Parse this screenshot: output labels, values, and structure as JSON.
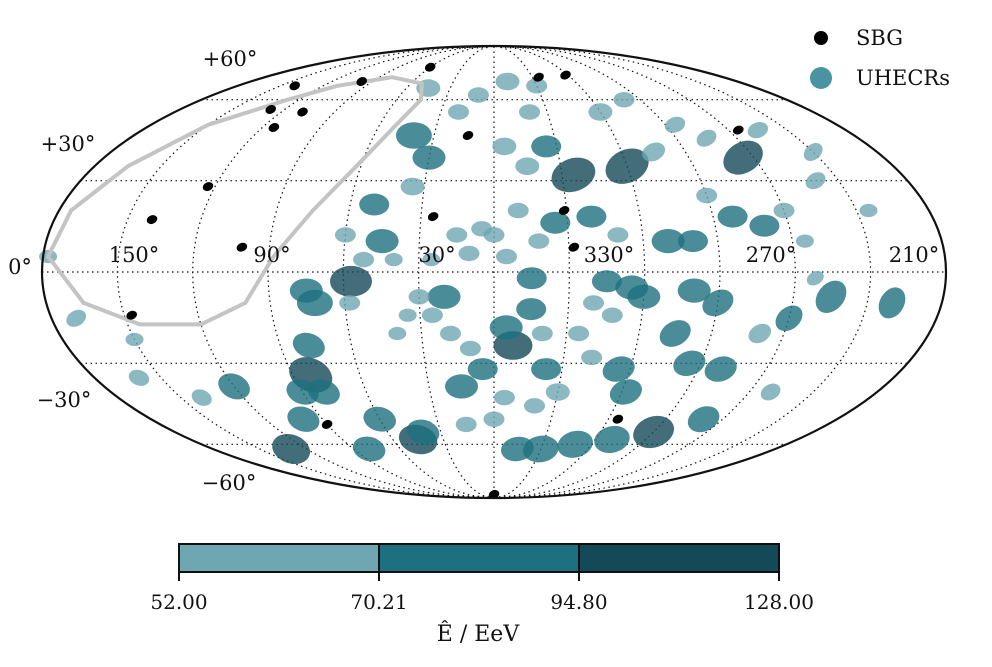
{
  "chart_data": {
    "type": "scatter",
    "projection": "mollweide",
    "coordinate_system": "galactic",
    "grid": true,
    "lon_tick_labels": [
      "150°",
      "90°",
      "30°",
      "330°",
      "270°",
      "210°"
    ],
    "lat_tick_labels": [
      "+60°",
      "+30°",
      "0°",
      "−30°",
      "−60°"
    ],
    "legend_placement": "top-right",
    "legend": [
      {
        "label": "SBG",
        "color": "#000000"
      },
      {
        "label": "UHECRs",
        "color": "#4a93a0"
      }
    ],
    "colorbar": {
      "label": "Ê / EeV",
      "boundaries": [
        52.0,
        70.21,
        94.8,
        128.0
      ],
      "tick_labels": [
        "52.00",
        "70.21",
        "94.80",
        "128.00"
      ],
      "colors": [
        "#6ea6b1",
        "#1d7080",
        "#144a58"
      ]
    },
    "sbg_sources": [
      {
        "lon": 114,
        "lat": 49
      },
      {
        "lon": 108,
        "lat": 55
      },
      {
        "lon": 128,
        "lat": 56
      },
      {
        "lon": 140,
        "lat": 66
      },
      {
        "lon": 98,
        "lat": 68
      },
      {
        "lon": 60,
        "lat": 75
      },
      {
        "lon": 123,
        "lat": 28
      },
      {
        "lon": 140,
        "lat": 17
      },
      {
        "lon": 101,
        "lat": 8
      },
      {
        "lon": 147,
        "lat": -14
      },
      {
        "lon": 13,
        "lat": 46
      },
      {
        "lon": 25,
        "lat": 18
      },
      {
        "lon": 331,
        "lat": 20
      },
      {
        "lon": 328,
        "lat": 8
      },
      {
        "lon": 302,
        "lat": 71
      },
      {
        "lon": 235,
        "lat": 48
      },
      {
        "lon": 325,
        "lat": 70
      },
      {
        "lon": 90,
        "lat": -52
      },
      {
        "lon": 295,
        "lat": -50
      },
      {
        "lon": 0,
        "lat": -86
      }
    ],
    "exposure_contour": [
      {
        "lon": 127,
        "lat": 60
      },
      {
        "lon": 150,
        "lat": 50
      },
      {
        "lon": 165,
        "lat": 35
      },
      {
        "lon": 175,
        "lat": 20
      },
      {
        "lon": 178,
        "lat": 5
      },
      {
        "lon": 165,
        "lat": -10
      },
      {
        "lon": 145,
        "lat": -17
      },
      {
        "lon": 120,
        "lat": -17
      },
      {
        "lon": 100,
        "lat": -10
      },
      {
        "lon": 88,
        "lat": 5
      },
      {
        "lon": 75,
        "lat": 20
      },
      {
        "lon": 62,
        "lat": 35
      },
      {
        "lon": 50,
        "lat": 52
      },
      {
        "lon": 45,
        "lat": 60
      },
      {
        "lon": 52,
        "lat": 67
      },
      {
        "lon": 80,
        "lat": 70
      },
      {
        "lon": 110,
        "lat": 66
      },
      {
        "lon": 127,
        "lat": 60
      }
    ],
    "uhecr_events": [
      {
        "lon": 40,
        "lat": 46,
        "energy": 78,
        "size": 1.2,
        "angle": 0
      },
      {
        "lon": 30,
        "lat": 38,
        "energy": 80,
        "size": 1.1,
        "angle": 0
      },
      {
        "lon": 35,
        "lat": 28,
        "energy": 60,
        "size": 0.8,
        "angle": 0
      },
      {
        "lon": 50,
        "lat": 22,
        "energy": 80,
        "size": 1.0,
        "angle": 0
      },
      {
        "lon": 45,
        "lat": 10,
        "energy": 85,
        "size": 1.1,
        "angle": 0
      },
      {
        "lon": 60,
        "lat": 12,
        "energy": 58,
        "size": 0.7,
        "angle": 0
      },
      {
        "lon": 52,
        "lat": 4,
        "energy": 58,
        "size": 0.7,
        "angle": 0
      },
      {
        "lon": 57,
        "lat": -3,
        "energy": 110,
        "size": 1.4,
        "angle": 0
      },
      {
        "lon": 75,
        "lat": -6,
        "energy": 85,
        "size": 1.1,
        "angle": 0
      },
      {
        "lon": 72,
        "lat": -10,
        "energy": 82,
        "size": 1.2,
        "angle": 0
      },
      {
        "lon": 78,
        "lat": -24,
        "energy": 78,
        "size": 1.1,
        "angle": 20
      },
      {
        "lon": 82,
        "lat": -34,
        "energy": 100,
        "size": 1.5,
        "angle": 25
      },
      {
        "lon": 80,
        "lat": -40,
        "energy": 78,
        "size": 1.1,
        "angle": 20
      },
      {
        "lon": 58,
        "lat": -10,
        "energy": 58,
        "size": 0.7,
        "angle": 0
      },
      {
        "lon": 40,
        "lat": 4,
        "energy": 58,
        "size": 0.6,
        "angle": 0
      },
      {
        "lon": 25,
        "lat": 4,
        "energy": 58,
        "size": 0.6,
        "angle": 0
      },
      {
        "lon": 15,
        "lat": 12,
        "energy": 58,
        "size": 0.7,
        "angle": 0
      },
      {
        "lon": 10,
        "lat": 6,
        "energy": 58,
        "size": 0.7,
        "angle": 0
      },
      {
        "lon": 5,
        "lat": 14,
        "energy": 58,
        "size": 0.7,
        "angle": 0
      },
      {
        "lon": 355,
        "lat": 5,
        "energy": 58,
        "size": 0.7,
        "angle": 0
      },
      {
        "lon": 345,
        "lat": -2,
        "energy": 80,
        "size": 1.0,
        "angle": 0
      },
      {
        "lon": 20,
        "lat": -8,
        "energy": 85,
        "size": 1.1,
        "angle": 0
      },
      {
        "lon": 30,
        "lat": -8,
        "energy": 58,
        "size": 0.7,
        "angle": 0
      },
      {
        "lon": 25,
        "lat": -14,
        "energy": 58,
        "size": 0.7,
        "angle": 0
      },
      {
        "lon": 35,
        "lat": -14,
        "energy": 58,
        "size": 0.6,
        "angle": 0
      },
      {
        "lon": 18,
        "lat": -20,
        "energy": 58,
        "size": 0.7,
        "angle": 0
      },
      {
        "lon": 40,
        "lat": -20,
        "energy": 58,
        "size": 0.6,
        "angle": 0
      },
      {
        "lon": 10,
        "lat": -25,
        "energy": 58,
        "size": 0.7,
        "angle": 0
      },
      {
        "lon": 5,
        "lat": -32,
        "energy": 80,
        "size": 1.0,
        "angle": 0
      },
      {
        "lon": 15,
        "lat": -38,
        "energy": 85,
        "size": 1.1,
        "angle": 0
      },
      {
        "lon": 352,
        "lat": -24,
        "energy": 100,
        "size": 1.3,
        "angle": 0
      },
      {
        "lon": 355,
        "lat": -18,
        "energy": 80,
        "size": 1.1,
        "angle": 0
      },
      {
        "lon": 345,
        "lat": -12,
        "energy": 80,
        "size": 1.0,
        "angle": 0
      },
      {
        "lon": 340,
        "lat": -20,
        "energy": 58,
        "size": 0.7,
        "angle": 0
      },
      {
        "lon": 337,
        "lat": -32,
        "energy": 80,
        "size": 1.0,
        "angle": 0
      },
      {
        "lon": 330,
        "lat": -40,
        "energy": 58,
        "size": 0.8,
        "angle": 0
      },
      {
        "lon": 340,
        "lat": -45,
        "energy": 58,
        "size": 0.7,
        "angle": 0
      },
      {
        "lon": 325,
        "lat": -20,
        "energy": 58,
        "size": 0.7,
        "angle": 0
      },
      {
        "lon": 320,
        "lat": -10,
        "energy": 58,
        "size": 0.7,
        "angle": 0
      },
      {
        "lon": 315,
        "lat": -3,
        "energy": 80,
        "size": 1.0,
        "angle": 0
      },
      {
        "lon": 305,
        "lat": -5,
        "energy": 80,
        "size": 1.1,
        "angle": 0
      },
      {
        "lon": 300,
        "lat": -8,
        "energy": 80,
        "size": 1.1,
        "angle": 0
      },
      {
        "lon": 312,
        "lat": -14,
        "energy": 58,
        "size": 0.7,
        "angle": 0
      },
      {
        "lon": 318,
        "lat": -28,
        "energy": 58,
        "size": 0.7,
        "angle": 0
      },
      {
        "lon": 305,
        "lat": -32,
        "energy": 80,
        "size": 1.1,
        "angle": -20
      },
      {
        "lon": 298,
        "lat": -40,
        "energy": 80,
        "size": 1.1,
        "angle": -20
      },
      {
        "lon": 285,
        "lat": -20,
        "energy": 80,
        "size": 1.1,
        "angle": -30
      },
      {
        "lon": 275,
        "lat": -30,
        "energy": 80,
        "size": 1.1,
        "angle": -20
      },
      {
        "lon": 260,
        "lat": -32,
        "energy": 80,
        "size": 1.1,
        "angle": -20
      },
      {
        "lon": 250,
        "lat": -20,
        "energy": 58,
        "size": 0.8,
        "angle": -30
      },
      {
        "lon": 240,
        "lat": -15,
        "energy": 80,
        "size": 1.0,
        "angle": -40
      },
      {
        "lon": 225,
        "lat": -8,
        "energy": 80,
        "size": 1.2,
        "angle": -50
      },
      {
        "lon": 232,
        "lat": -2,
        "energy": 58,
        "size": 0.6,
        "angle": -30
      },
      {
        "lon": 270,
        "lat": -10,
        "energy": 80,
        "size": 1.1,
        "angle": -30
      },
      {
        "lon": 280,
        "lat": -6,
        "energy": 80,
        "size": 1.1,
        "angle": 0
      },
      {
        "lon": 290,
        "lat": 10,
        "energy": 80,
        "size": 1.1,
        "angle": 0
      },
      {
        "lon": 280,
        "lat": 10,
        "energy": 80,
        "size": 1.0,
        "angle": 0
      },
      {
        "lon": 310,
        "lat": 12,
        "energy": 58,
        "size": 0.7,
        "angle": 0
      },
      {
        "lon": 320,
        "lat": 18,
        "energy": 80,
        "size": 1.0,
        "angle": 0
      },
      {
        "lon": 335,
        "lat": 16,
        "energy": 80,
        "size": 1.0,
        "angle": 0
      },
      {
        "lon": 342,
        "lat": 10,
        "energy": 58,
        "size": 0.7,
        "angle": 0
      },
      {
        "lon": 350,
        "lat": 20,
        "energy": 58,
        "size": 0.7,
        "angle": 0
      },
      {
        "lon": 0,
        "lat": 12,
        "energy": 58,
        "size": 0.7,
        "angle": 0
      },
      {
        "lon": 325,
        "lat": 32,
        "energy": 110,
        "size": 1.5,
        "angle": -20
      },
      {
        "lon": 335,
        "lat": 42,
        "energy": 80,
        "size": 1.0,
        "angle": 0
      },
      {
        "lon": 345,
        "lat": 35,
        "energy": 58,
        "size": 0.8,
        "angle": 0
      },
      {
        "lon": 355,
        "lat": 42,
        "energy": 58,
        "size": 0.8,
        "angle": 0
      },
      {
        "lon": 300,
        "lat": 35,
        "energy": 110,
        "size": 1.5,
        "angle": -25
      },
      {
        "lon": 285,
        "lat": 40,
        "energy": 58,
        "size": 0.8,
        "angle": -25
      },
      {
        "lon": 270,
        "lat": 25,
        "energy": 58,
        "size": 0.7,
        "angle": 0
      },
      {
        "lon": 262,
        "lat": 18,
        "energy": 80,
        "size": 1.0,
        "angle": 0
      },
      {
        "lon": 250,
        "lat": 15,
        "energy": 80,
        "size": 1.0,
        "angle": 0
      },
      {
        "lon": 240,
        "lat": 20,
        "energy": 58,
        "size": 0.7,
        "angle": 0
      },
      {
        "lon": 235,
        "lat": 10,
        "energy": 58,
        "size": 0.6,
        "angle": 0
      },
      {
        "lon": 10,
        "lat": 62,
        "energy": 58,
        "size": 0.7,
        "angle": 0
      },
      {
        "lon": 350,
        "lat": 68,
        "energy": 58,
        "size": 0.8,
        "angle": 0
      },
      {
        "lon": 330,
        "lat": 66,
        "energy": 58,
        "size": 0.7,
        "angle": 0
      },
      {
        "lon": 340,
        "lat": 55,
        "energy": 58,
        "size": 0.7,
        "angle": 0
      },
      {
        "lon": 20,
        "lat": 55,
        "energy": 58,
        "size": 0.7,
        "angle": 0
      },
      {
        "lon": 45,
        "lat": 65,
        "energy": 58,
        "size": 0.8,
        "angle": 0
      },
      {
        "lon": 300,
        "lat": 55,
        "energy": 58,
        "size": 0.8,
        "angle": 0
      },
      {
        "lon": 280,
        "lat": 60,
        "energy": 58,
        "size": 0.7,
        "angle": 0
      },
      {
        "lon": 60,
        "lat": -50,
        "energy": 80,
        "size": 1.1,
        "angle": 15
      },
      {
        "lon": 45,
        "lat": -58,
        "energy": 100,
        "size": 1.3,
        "angle": 15
      },
      {
        "lon": 40,
        "lat": -55,
        "energy": 80,
        "size": 1.1,
        "angle": 15
      },
      {
        "lon": 90,
        "lat": -40,
        "energy": 80,
        "size": 1.1,
        "angle": 20
      },
      {
        "lon": 120,
        "lat": -38,
        "energy": 80,
        "size": 1.1,
        "angle": 25
      },
      {
        "lon": 100,
        "lat": -50,
        "energy": 80,
        "size": 1.1,
        "angle": 20
      },
      {
        "lon": 130,
        "lat": -62,
        "energy": 100,
        "size": 1.3,
        "angle": 20
      },
      {
        "lon": 80,
        "lat": -62,
        "energy": 80,
        "size": 1.1,
        "angle": 15
      },
      {
        "lon": 345,
        "lat": -62,
        "energy": 80,
        "size": 1.1,
        "angle": -10
      },
      {
        "lon": 330,
        "lat": -62,
        "energy": 80,
        "size": 1.2,
        "angle": -10
      },
      {
        "lon": 310,
        "lat": -60,
        "energy": 80,
        "size": 1.2,
        "angle": -15
      },
      {
        "lon": 290,
        "lat": -58,
        "energy": 80,
        "size": 1.2,
        "angle": -15
      },
      {
        "lon": 270,
        "lat": -55,
        "energy": 100,
        "size": 1.4,
        "angle": -20
      },
      {
        "lon": 250,
        "lat": -50,
        "energy": 80,
        "size": 1.1,
        "angle": -25
      },
      {
        "lon": 230,
        "lat": -40,
        "energy": 58,
        "size": 0.7,
        "angle": -30
      },
      {
        "lon": 200,
        "lat": -10,
        "energy": 80,
        "size": 1.1,
        "angle": -60
      },
      {
        "lon": 170,
        "lat": -15,
        "energy": 58,
        "size": 0.7,
        "angle": -30
      },
      {
        "lon": 178,
        "lat": 5,
        "energy": 58,
        "size": 0.6,
        "angle": 0
      },
      {
        "lon": 205,
        "lat": 20,
        "energy": 58,
        "size": 0.6,
        "angle": 0
      },
      {
        "lon": 220,
        "lat": 30,
        "energy": 58,
        "size": 0.7,
        "angle": -30
      },
      {
        "lon": 245,
        "lat": 38,
        "energy": 100,
        "size": 1.4,
        "angle": -30
      },
      {
        "lon": 255,
        "lat": 45,
        "energy": 58,
        "size": 0.7,
        "angle": -30
      },
      {
        "lon": 225,
        "lat": 48,
        "energy": 58,
        "size": 0.7,
        "angle": -20
      },
      {
        "lon": 210,
        "lat": 40,
        "energy": 58,
        "size": 0.7,
        "angle": -40
      },
      {
        "lon": 265,
        "lat": 50,
        "energy": 58,
        "size": 0.7,
        "angle": -20
      },
      {
        "lon": 150,
        "lat": -22,
        "energy": 58,
        "size": 0.6,
        "angle": 0
      },
      {
        "lon": 160,
        "lat": -35,
        "energy": 58,
        "size": 0.7,
        "angle": 20
      },
      {
        "lon": 140,
        "lat": -42,
        "energy": 58,
        "size": 0.7,
        "angle": 25
      },
      {
        "lon": 0,
        "lat": -50,
        "energy": 58,
        "size": 0.7,
        "angle": 0
      },
      {
        "lon": 15,
        "lat": -52,
        "energy": 58,
        "size": 0.7,
        "angle": 0
      },
      {
        "lon": 355,
        "lat": -42,
        "energy": 58,
        "size": 0.7,
        "angle": 0
      }
    ]
  },
  "legend": {
    "sbg_label": "SBG",
    "uhecr_label": "UHECRs"
  },
  "colorbar": {
    "title": "Ê / EeV",
    "tick0": "52.00",
    "tick1": "70.21",
    "tick2": "94.80",
    "tick3": "128.00"
  },
  "colors": {
    "low": "#6ea6b1",
    "mid": "#1d7080",
    "high": "#144a58",
    "sbg": "#000000",
    "contour": "#c4c4c4",
    "legend_uhecr": "#4a93a0"
  }
}
